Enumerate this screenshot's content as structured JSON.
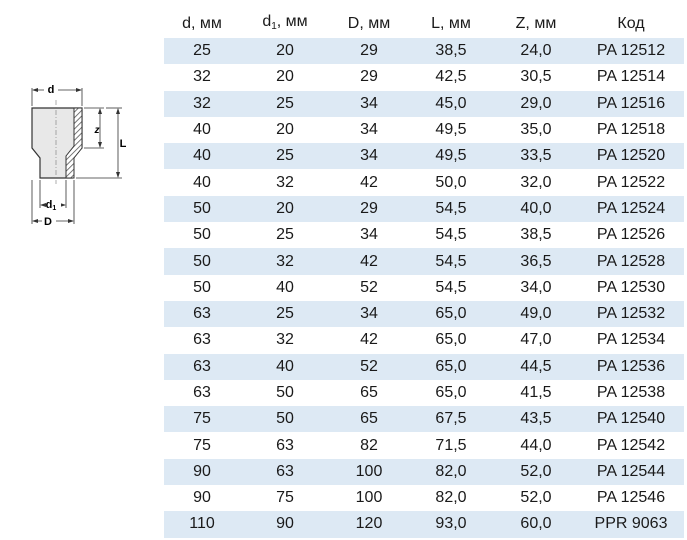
{
  "diagram": {
    "labels": {
      "d": "d",
      "d1_base": "d",
      "d1_sub": "1",
      "D": "D",
      "z": "z",
      "L": "L"
    }
  },
  "table": {
    "headers": {
      "d": "d, мм",
      "d1_base": "d",
      "d1_sub": "1",
      "d1_unit": ", мм",
      "D": "D, мм",
      "L": "L, мм",
      "Z": "Z, мм",
      "code": "Код"
    },
    "rows": [
      [
        "25",
        "20",
        "29",
        "38,5",
        "24,0",
        "PA 12512"
      ],
      [
        "32",
        "20",
        "29",
        "42,5",
        "30,5",
        "PA 12514"
      ],
      [
        "32",
        "25",
        "34",
        "45,0",
        "29,0",
        "PA 12516"
      ],
      [
        "40",
        "20",
        "34",
        "49,5",
        "35,0",
        "PA 12518"
      ],
      [
        "40",
        "25",
        "34",
        "49,5",
        "33,5",
        "PA 12520"
      ],
      [
        "40",
        "32",
        "42",
        "50,0",
        "32,0",
        "PA 12522"
      ],
      [
        "50",
        "20",
        "29",
        "54,5",
        "40,0",
        "PA 12524"
      ],
      [
        "50",
        "25",
        "34",
        "54,5",
        "38,5",
        "PA 12526"
      ],
      [
        "50",
        "32",
        "42",
        "54,5",
        "36,5",
        "PA 12528"
      ],
      [
        "50",
        "40",
        "52",
        "54,5",
        "34,0",
        "PA 12530"
      ],
      [
        "63",
        "25",
        "34",
        "65,0",
        "49,0",
        "PA 12532"
      ],
      [
        "63",
        "32",
        "42",
        "65,0",
        "47,0",
        "PA 12534"
      ],
      [
        "63",
        "40",
        "52",
        "65,0",
        "44,5",
        "PA 12536"
      ],
      [
        "63",
        "50",
        "65",
        "65,0",
        "41,5",
        "PA 12538"
      ],
      [
        "75",
        "50",
        "65",
        "67,5",
        "43,5",
        "PA 12540"
      ],
      [
        "75",
        "63",
        "82",
        "71,5",
        "44,0",
        "PA 12542"
      ],
      [
        "90",
        "63",
        "100",
        "82,0",
        "52,0",
        "PA 12544"
      ],
      [
        "90",
        "75",
        "100",
        "82,0",
        "52,0",
        "PA 12546"
      ],
      [
        "110",
        "90",
        "120",
        "93,0",
        "60,0",
        "PPR 9063"
      ]
    ],
    "shaded_color": "#dde9f4"
  }
}
